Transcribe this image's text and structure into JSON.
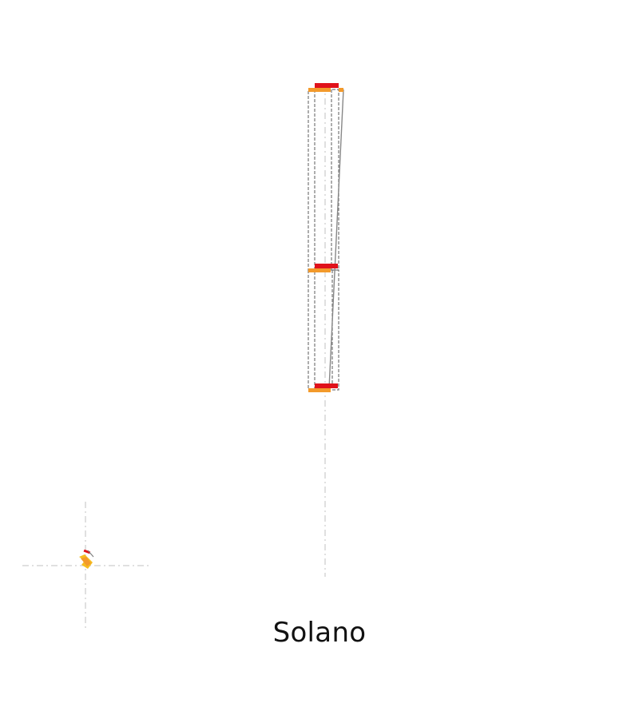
{
  "caption": "Solano",
  "colors": {
    "background": "#ffffff",
    "guide": "#d6d6d6",
    "outline": "#777777",
    "bar_red": "#e0121b",
    "bar_orange": "#f39a2b",
    "icon_yellow": "#f6bd1f",
    "text": "#111111"
  }
}
